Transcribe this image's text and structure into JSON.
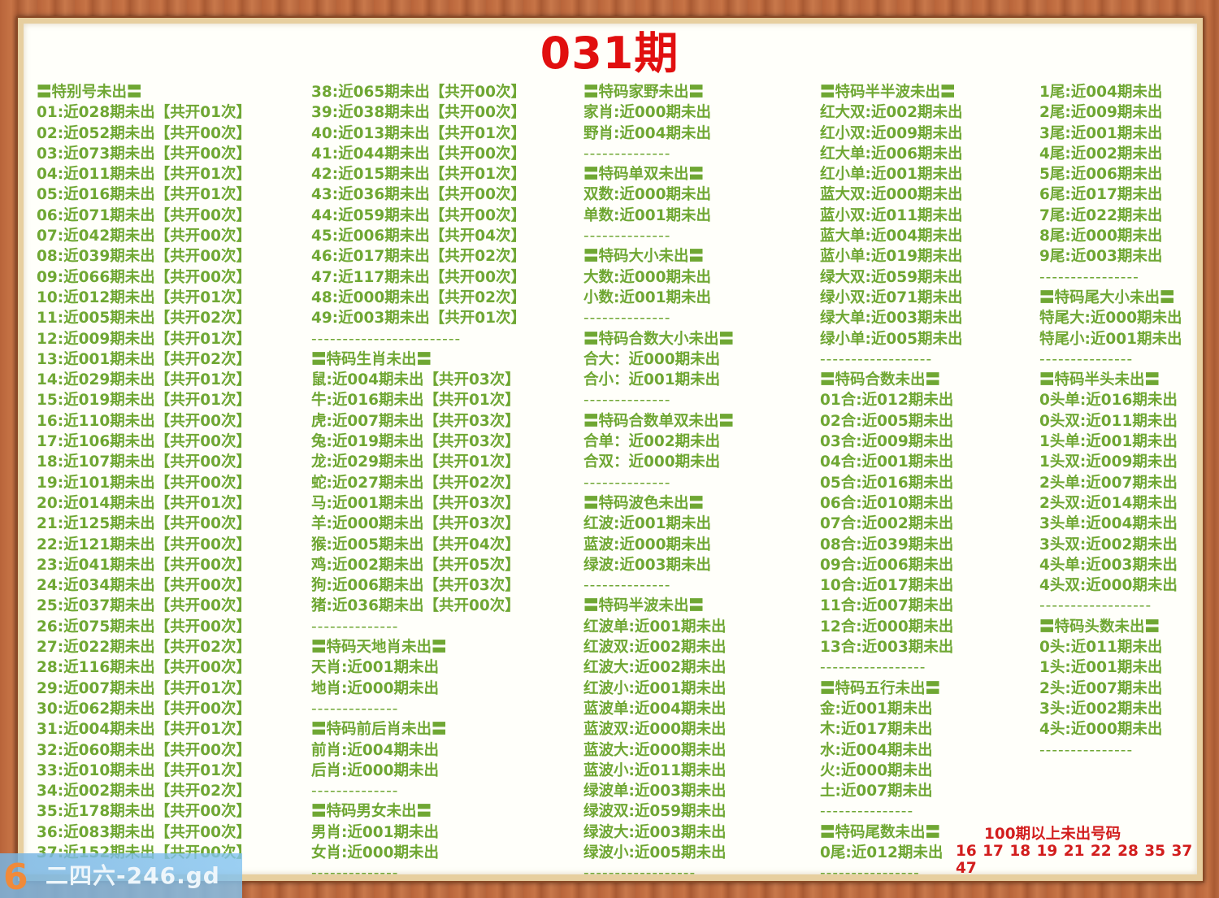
{
  "title": "031期",
  "columns": [
    [
      {
        "t": "〓特别号未出〓",
        "k": "header"
      },
      {
        "t": "01:近028期未出【共开01次】",
        "k": "item"
      },
      {
        "t": "02:近052期未出【共开00次】",
        "k": "item"
      },
      {
        "t": "03:近073期未出【共开00次】",
        "k": "item"
      },
      {
        "t": "04:近011期未出【共开01次】",
        "k": "item"
      },
      {
        "t": "05:近016期未出【共开01次】",
        "k": "item"
      },
      {
        "t": "06:近071期未出【共开00次】",
        "k": "item"
      },
      {
        "t": "07:近042期未出【共开00次】",
        "k": "item"
      },
      {
        "t": "08:近039期未出【共开00次】",
        "k": "item"
      },
      {
        "t": "09:近066期未出【共开00次】",
        "k": "item"
      },
      {
        "t": "10:近012期未出【共开01次】",
        "k": "item"
      },
      {
        "t": "11:近005期未出【共开02次】",
        "k": "item"
      },
      {
        "t": "12:近009期未出【共开01次】",
        "k": "item"
      },
      {
        "t": "13:近001期未出【共开02次】",
        "k": "item"
      },
      {
        "t": "14:近029期未出【共开01次】",
        "k": "item"
      },
      {
        "t": "15:近019期未出【共开01次】",
        "k": "item"
      },
      {
        "t": "16:近110期未出【共开00次】",
        "k": "item"
      },
      {
        "t": "17:近106期未出【共开00次】",
        "k": "item"
      },
      {
        "t": "18:近107期未出【共开00次】",
        "k": "item"
      },
      {
        "t": "19:近101期未出【共开00次】",
        "k": "item"
      },
      {
        "t": "20:近014期未出【共开01次】",
        "k": "item"
      },
      {
        "t": "21:近125期未出【共开00次】",
        "k": "item"
      },
      {
        "t": "22:近121期未出【共开00次】",
        "k": "item"
      },
      {
        "t": "23:近041期未出【共开00次】",
        "k": "item"
      },
      {
        "t": "24:近034期未出【共开00次】",
        "k": "item"
      },
      {
        "t": "25:近037期未出【共开00次】",
        "k": "item"
      },
      {
        "t": "26:近075期未出【共开00次】",
        "k": "item"
      },
      {
        "t": "27:近022期未出【共开02次】",
        "k": "item"
      },
      {
        "t": "28:近116期未出【共开00次】",
        "k": "item"
      },
      {
        "t": "29:近007期未出【共开01次】",
        "k": "item"
      },
      {
        "t": "30:近062期未出【共开00次】",
        "k": "item"
      },
      {
        "t": "31:近004期未出【共开01次】",
        "k": "item"
      },
      {
        "t": "32:近060期未出【共开00次】",
        "k": "item"
      },
      {
        "t": "33:近010期未出【共开01次】",
        "k": "item"
      },
      {
        "t": "34:近002期未出【共开02次】",
        "k": "item"
      },
      {
        "t": "35:近178期未出【共开00次】",
        "k": "item"
      },
      {
        "t": "36:近083期未出【共开00次】",
        "k": "item"
      },
      {
        "t": "37:近152期未出【共开00次】",
        "k": "item"
      }
    ],
    [
      {
        "t": "38:近065期未出【共开00次】",
        "k": "item"
      },
      {
        "t": "39:近038期未出【共开00次】",
        "k": "item"
      },
      {
        "t": "40:近013期未出【共开01次】",
        "k": "item"
      },
      {
        "t": "41:近044期未出【共开00次】",
        "k": "item"
      },
      {
        "t": "42:近015期未出【共开01次】",
        "k": "item"
      },
      {
        "t": "43:近036期未出【共开00次】",
        "k": "item"
      },
      {
        "t": "44:近059期未出【共开00次】",
        "k": "item"
      },
      {
        "t": "45:近006期未出【共开04次】",
        "k": "item"
      },
      {
        "t": "46:近017期未出【共开02次】",
        "k": "item"
      },
      {
        "t": "47:近117期未出【共开00次】",
        "k": "item"
      },
      {
        "t": "48:近000期未出【共开02次】",
        "k": "item"
      },
      {
        "t": "49:近003期未出【共开01次】",
        "k": "item"
      },
      {
        "t": "------------------------",
        "k": "dash"
      },
      {
        "t": "〓特码生肖未出〓",
        "k": "header"
      },
      {
        "t": "鼠:近004期未出【共开03次】",
        "k": "item"
      },
      {
        "t": "牛:近016期未出【共开01次】",
        "k": "item"
      },
      {
        "t": "虎:近007期未出【共开03次】",
        "k": "item"
      },
      {
        "t": "兔:近019期未出【共开03次】",
        "k": "item"
      },
      {
        "t": "龙:近029期未出【共开01次】",
        "k": "item"
      },
      {
        "t": "蛇:近027期未出【共开02次】",
        "k": "item"
      },
      {
        "t": "马:近001期未出【共开03次】",
        "k": "item"
      },
      {
        "t": "羊:近000期未出【共开03次】",
        "k": "item"
      },
      {
        "t": "猴:近005期未出【共开04次】",
        "k": "item"
      },
      {
        "t": "鸡:近002期未出【共开05次】",
        "k": "item"
      },
      {
        "t": "狗:近006期未出【共开03次】",
        "k": "item"
      },
      {
        "t": "猪:近036期未出【共开00次】",
        "k": "item"
      },
      {
        "t": "--------------",
        "k": "dash"
      },
      {
        "t": "〓特码天地肖未出〓",
        "k": "header"
      },
      {
        "t": "天肖:近001期未出",
        "k": "item"
      },
      {
        "t": "地肖:近000期未出",
        "k": "item"
      },
      {
        "t": "--------------",
        "k": "dash"
      },
      {
        "t": "〓特码前后肖未出〓",
        "k": "header"
      },
      {
        "t": "前肖:近004期未出",
        "k": "item"
      },
      {
        "t": "后肖:近000期未出",
        "k": "item"
      },
      {
        "t": "--------------",
        "k": "dash"
      },
      {
        "t": "〓特码男女未出〓",
        "k": "header"
      },
      {
        "t": "男肖:近001期未出",
        "k": "item"
      },
      {
        "t": "女肖:近000期未出",
        "k": "item"
      },
      {
        "t": "--------------",
        "k": "dash"
      }
    ],
    [
      {
        "t": "〓特码家野未出〓",
        "k": "header"
      },
      {
        "t": "家肖:近000期未出",
        "k": "item"
      },
      {
        "t": "野肖:近004期未出",
        "k": "item"
      },
      {
        "t": "--------------",
        "k": "dash"
      },
      {
        "t": "〓特码单双未出〓",
        "k": "header"
      },
      {
        "t": "双数:近000期未出",
        "k": "item"
      },
      {
        "t": "单数:近001期未出",
        "k": "item"
      },
      {
        "t": "--------------",
        "k": "dash"
      },
      {
        "t": "〓特码大小未出〓",
        "k": "header"
      },
      {
        "t": "大数:近000期未出",
        "k": "item"
      },
      {
        "t": "小数:近001期未出",
        "k": "item"
      },
      {
        "t": "--------------",
        "k": "dash"
      },
      {
        "t": "〓特码合数大小未出〓",
        "k": "header"
      },
      {
        "t": "合大：近000期未出",
        "k": "item"
      },
      {
        "t": "合小：近001期未出",
        "k": "item"
      },
      {
        "t": "--------------",
        "k": "dash"
      },
      {
        "t": "〓特码合数单双未出〓",
        "k": "header"
      },
      {
        "t": "合单：近002期未出",
        "k": "item"
      },
      {
        "t": "合双：近000期未出",
        "k": "item"
      },
      {
        "t": "--------------",
        "k": "dash"
      },
      {
        "t": "〓特码波色未出〓",
        "k": "header"
      },
      {
        "t": "红波:近001期未出",
        "k": "item"
      },
      {
        "t": "蓝波:近000期未出",
        "k": "item"
      },
      {
        "t": "绿波:近003期未出",
        "k": "item"
      },
      {
        "t": "--------------",
        "k": "dash"
      },
      {
        "t": "〓特码半波未出〓",
        "k": "header"
      },
      {
        "t": "红波单:近001期未出",
        "k": "item"
      },
      {
        "t": "红波双:近002期未出",
        "k": "item"
      },
      {
        "t": "红波大:近002期未出",
        "k": "item"
      },
      {
        "t": "红波小:近001期未出",
        "k": "item"
      },
      {
        "t": "蓝波单:近004期未出",
        "k": "item"
      },
      {
        "t": "蓝波双:近000期未出",
        "k": "item"
      },
      {
        "t": "蓝波大:近000期未出",
        "k": "item"
      },
      {
        "t": "蓝波小:近011期未出",
        "k": "item"
      },
      {
        "t": "绿波单:近003期未出",
        "k": "item"
      },
      {
        "t": "绿波双:近059期未出",
        "k": "item"
      },
      {
        "t": "绿波大:近003期未出",
        "k": "item"
      },
      {
        "t": "绿波小:近005期未出",
        "k": "item"
      },
      {
        "t": "------------------",
        "k": "dash"
      }
    ],
    [
      {
        "t": "〓特码半半波未出〓",
        "k": "header"
      },
      {
        "t": "红大双:近002期未出",
        "k": "item"
      },
      {
        "t": "红小双:近009期未出",
        "k": "item"
      },
      {
        "t": "红大单:近006期未出",
        "k": "item"
      },
      {
        "t": "红小单:近001期未出",
        "k": "item"
      },
      {
        "t": "蓝大双:近000期未出",
        "k": "item"
      },
      {
        "t": "蓝小双:近011期未出",
        "k": "item"
      },
      {
        "t": "蓝大单:近004期未出",
        "k": "item"
      },
      {
        "t": "蓝小单:近019期未出",
        "k": "item"
      },
      {
        "t": "绿大双:近059期未出",
        "k": "item"
      },
      {
        "t": "绿小双:近071期未出",
        "k": "item"
      },
      {
        "t": "绿大单:近003期未出",
        "k": "item"
      },
      {
        "t": "绿小单:近005期未出",
        "k": "item"
      },
      {
        "t": "------------------",
        "k": "dash"
      },
      {
        "t": "〓特码合数未出〓",
        "k": "header"
      },
      {
        "t": "01合:近012期未出",
        "k": "item"
      },
      {
        "t": "02合:近005期未出",
        "k": "item"
      },
      {
        "t": "03合:近009期未出",
        "k": "item"
      },
      {
        "t": "04合:近001期未出",
        "k": "item"
      },
      {
        "t": "05合:近016期未出",
        "k": "item"
      },
      {
        "t": "06合:近010期未出",
        "k": "item"
      },
      {
        "t": "07合:近002期未出",
        "k": "item"
      },
      {
        "t": "08合:近039期未出",
        "k": "item"
      },
      {
        "t": "09合:近006期未出",
        "k": "item"
      },
      {
        "t": "10合:近017期未出",
        "k": "item"
      },
      {
        "t": "11合:近007期未出",
        "k": "item"
      },
      {
        "t": "12合:近000期未出",
        "k": "item"
      },
      {
        "t": "13合:近003期未出",
        "k": "item"
      },
      {
        "t": "-----------------",
        "k": "dash"
      },
      {
        "t": "〓特码五行未出〓",
        "k": "header"
      },
      {
        "t": "金:近001期未出",
        "k": "item"
      },
      {
        "t": "木:近017期未出",
        "k": "item"
      },
      {
        "t": "水:近004期未出",
        "k": "item"
      },
      {
        "t": "火:近000期未出",
        "k": "item"
      },
      {
        "t": "土:近007期未出",
        "k": "item"
      },
      {
        "t": "---------------",
        "k": "dash"
      },
      {
        "t": "〓特码尾数未出〓",
        "k": "header"
      },
      {
        "t": "0尾:近012期未出",
        "k": "item"
      },
      {
        "t": "----------------",
        "k": "dash"
      }
    ],
    [
      {
        "t": "1尾:近004期未出",
        "k": "item"
      },
      {
        "t": "2尾:近009期未出",
        "k": "item"
      },
      {
        "t": "3尾:近001期未出",
        "k": "item"
      },
      {
        "t": "4尾:近002期未出",
        "k": "item"
      },
      {
        "t": "5尾:近006期未出",
        "k": "item"
      },
      {
        "t": "6尾:近017期未出",
        "k": "item"
      },
      {
        "t": "7尾:近022期未出",
        "k": "item"
      },
      {
        "t": "8尾:近000期未出",
        "k": "item"
      },
      {
        "t": "9尾:近003期未出",
        "k": "item"
      },
      {
        "t": "----------------",
        "k": "dash"
      },
      {
        "t": "〓特码尾大小未出〓",
        "k": "header"
      },
      {
        "t": "特尾大:近000期未出",
        "k": "item"
      },
      {
        "t": "特尾小:近001期未出",
        "k": "item"
      },
      {
        "t": "---------------",
        "k": "dash"
      },
      {
        "t": "〓特码半头未出〓",
        "k": "header"
      },
      {
        "t": "0头单:近016期未出",
        "k": "item"
      },
      {
        "t": "0头双:近011期未出",
        "k": "item"
      },
      {
        "t": "1头单:近001期未出",
        "k": "item"
      },
      {
        "t": "1头双:近009期未出",
        "k": "item"
      },
      {
        "t": "2头单:近007期未出",
        "k": "item"
      },
      {
        "t": "2头双:近014期未出",
        "k": "item"
      },
      {
        "t": "3头单:近004期未出",
        "k": "item"
      },
      {
        "t": "3头双:近002期未出",
        "k": "item"
      },
      {
        "t": "4头单:近003期未出",
        "k": "item"
      },
      {
        "t": "4头双:近000期未出",
        "k": "item"
      },
      {
        "t": "------------------",
        "k": "dash"
      },
      {
        "t": "〓特码头数未出〓",
        "k": "header"
      },
      {
        "t": "0头:近011期未出",
        "k": "item"
      },
      {
        "t": "1头:近001期未出",
        "k": "item"
      },
      {
        "t": "2头:近007期未出",
        "k": "item"
      },
      {
        "t": "3头:近002期未出",
        "k": "item"
      },
      {
        "t": "4头:近000期未出",
        "k": "item"
      },
      {
        "t": "---------------",
        "k": "dash"
      }
    ]
  ],
  "long_missing": {
    "label": "100期以上未出号码",
    "numbers": "16 17 18 19 21 22 28 35 37 47"
  },
  "watermark": {
    "logo": "6",
    "text": "二四六-246.gd"
  },
  "colors": {
    "text_green": "#6fa733",
    "title_red": "#e10f0f",
    "highlight_red": "#d21d1d"
  }
}
